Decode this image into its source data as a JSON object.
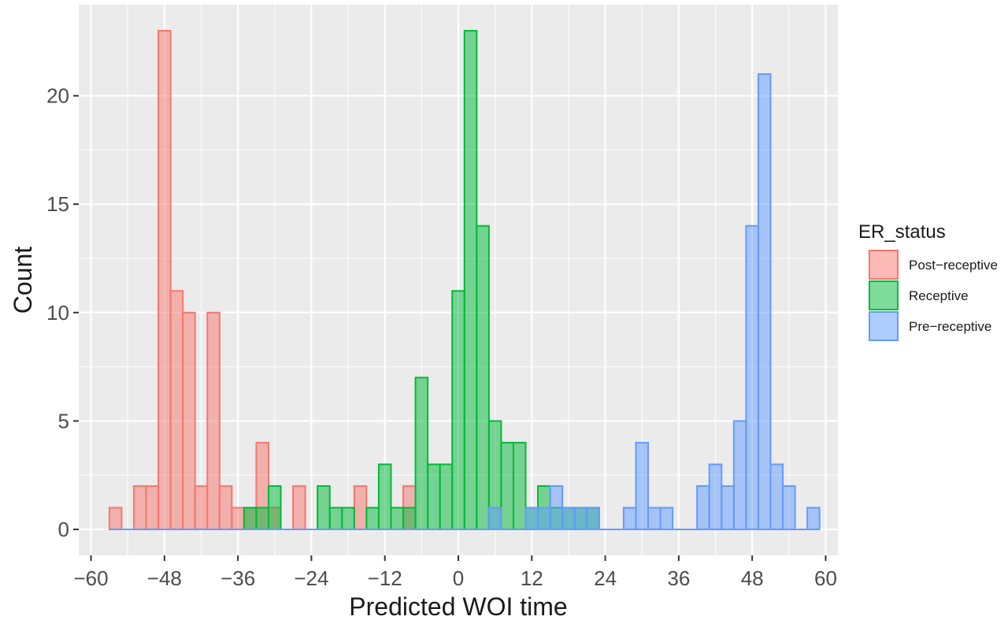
{
  "chart_data": {
    "type": "bar",
    "subtype": "histogram",
    "xlabel": "Predicted WOI time",
    "ylabel": "Count",
    "xlim": [
      -62,
      62
    ],
    "ylim": [
      -1.2,
      24.2
    ],
    "x_ticks": [
      "-60",
      "-48",
      "-36",
      "-24",
      "-12",
      "0",
      "12",
      "24",
      "36",
      "48",
      "60"
    ],
    "x_tick_values": [
      -60,
      -48,
      -36,
      -24,
      -12,
      0,
      12,
      24,
      36,
      48,
      60
    ],
    "y_ticks": [
      "0",
      "5",
      "10",
      "15",
      "20"
    ],
    "y_tick_values": [
      0,
      5,
      10,
      15,
      20
    ],
    "grid": true,
    "background": "#ebebeb",
    "bin_width": 2,
    "x_range": [
      -57,
      59
    ],
    "legend": {
      "title": "ER_status",
      "position": "right",
      "labels": [
        "Post−receptive",
        "Receptive",
        "Pre−receptive"
      ]
    },
    "series": [
      {
        "name": "Post−receptive",
        "fill": "#f8766d",
        "stroke": "#f8766d",
        "bins": [
          [
            -56,
            1
          ],
          [
            -52,
            2
          ],
          [
            -50,
            2
          ],
          [
            -48,
            23
          ],
          [
            -46,
            11
          ],
          [
            -44,
            10
          ],
          [
            -42,
            2
          ],
          [
            -40,
            10
          ],
          [
            -38,
            2
          ],
          [
            -36,
            1
          ],
          [
            -34,
            1
          ],
          [
            -32,
            4
          ],
          [
            -30,
            1
          ],
          [
            -26,
            2
          ],
          [
            -16,
            2
          ],
          [
            -8,
            2
          ]
        ]
      },
      {
        "name": "Receptive",
        "fill": "#00ba38",
        "stroke": "#00ba38",
        "bins": [
          [
            -34,
            1
          ],
          [
            -32,
            1
          ],
          [
            -30,
            2
          ],
          [
            -22,
            2
          ],
          [
            -20,
            1
          ],
          [
            -18,
            1
          ],
          [
            -14,
            1
          ],
          [
            -12,
            3
          ],
          [
            -10,
            1
          ],
          [
            -8,
            1
          ],
          [
            -6,
            7
          ],
          [
            -4,
            3
          ],
          [
            -2,
            3
          ],
          [
            0,
            11
          ],
          [
            2,
            23
          ],
          [
            4,
            14
          ],
          [
            6,
            5
          ],
          [
            8,
            4
          ],
          [
            10,
            4
          ],
          [
            12,
            1
          ],
          [
            14,
            2
          ],
          [
            16,
            1
          ],
          [
            18,
            1
          ],
          [
            20,
            1
          ],
          [
            22,
            1
          ]
        ]
      },
      {
        "name": "Pre−receptive",
        "fill": "#619cff",
        "stroke": "#619cff",
        "bins": [
          [
            6,
            1
          ],
          [
            12,
            1
          ],
          [
            14,
            1
          ],
          [
            16,
            2
          ],
          [
            18,
            1
          ],
          [
            20,
            1
          ],
          [
            22,
            1
          ],
          [
            28,
            1
          ],
          [
            30,
            4
          ],
          [
            32,
            1
          ],
          [
            34,
            1
          ],
          [
            40,
            2
          ],
          [
            42,
            3
          ],
          [
            44,
            2
          ],
          [
            46,
            5
          ],
          [
            48,
            14
          ],
          [
            50,
            21
          ],
          [
            52,
            3
          ],
          [
            54,
            2
          ],
          [
            58,
            1
          ]
        ]
      }
    ]
  }
}
